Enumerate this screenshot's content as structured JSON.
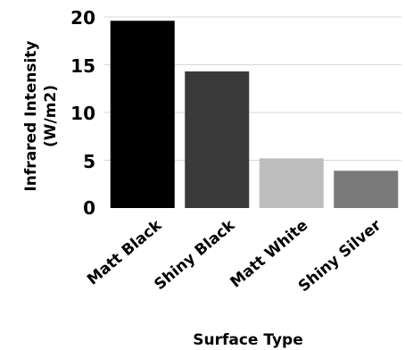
{
  "chart_data": {
    "type": "bar",
    "categories": [
      "Matt Black",
      "Shiny Black",
      "Matt White",
      "Shiny Silver"
    ],
    "values": [
      19.6,
      14.3,
      5.2,
      3.9
    ],
    "colors": [
      "#000000",
      "#3a3a3a",
      "#bdbdbd",
      "#7a7a7a"
    ],
    "xlabel": "Surface Type",
    "ylabel_line1": "Infrared Intensity",
    "ylabel_line2": "(W/m2)",
    "yticks": [
      "0",
      "5",
      "10",
      "15",
      "20"
    ],
    "ylim": [
      0,
      20
    ],
    "grid": true,
    "legend": "none"
  }
}
